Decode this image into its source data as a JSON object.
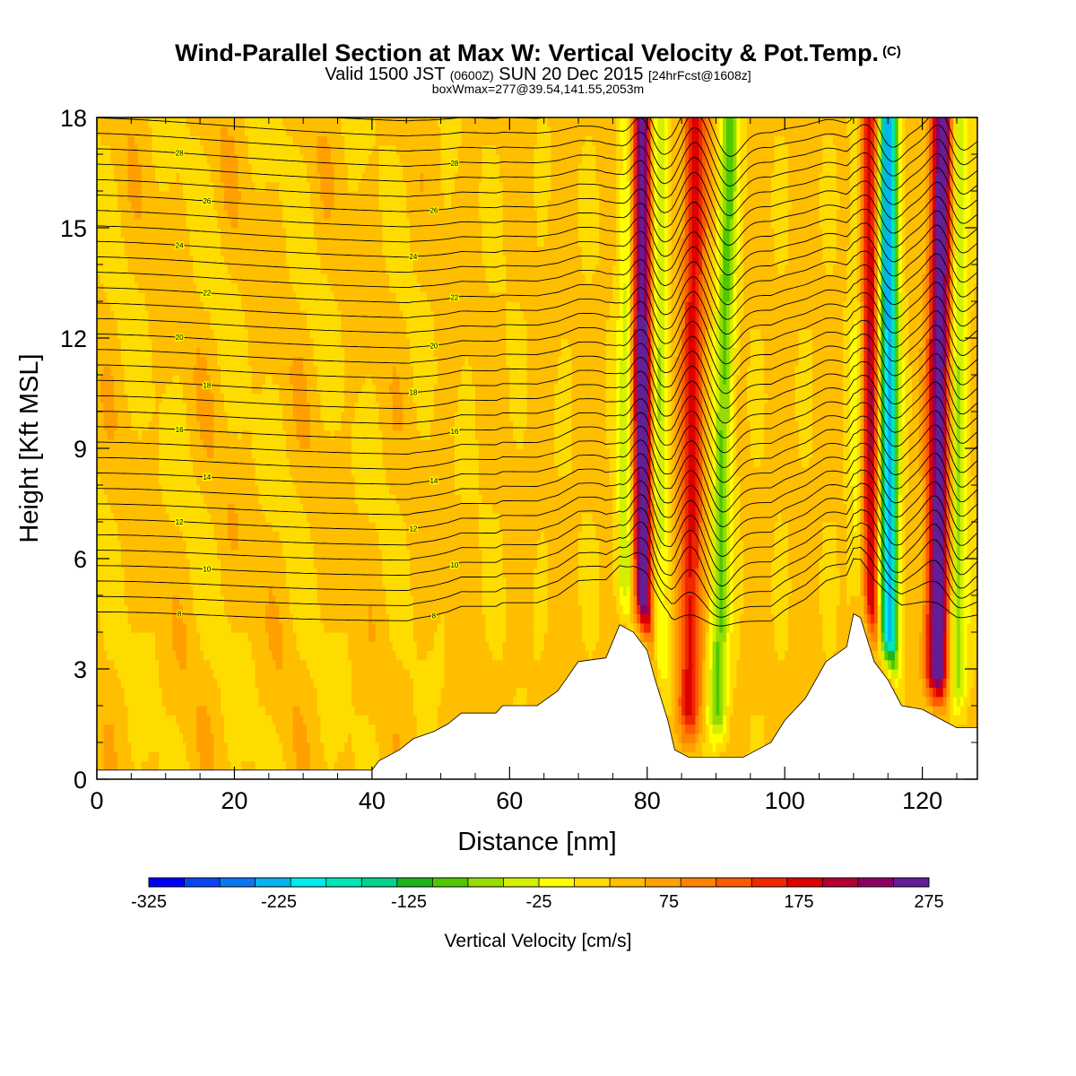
{
  "chart_data": {
    "type": "heatmap",
    "title": "Wind-Parallel Section at Max W: Vertical Velocity & Pot.Temp.",
    "title_mark": "(C)",
    "subtitle_parts": [
      "Valid 1500 JST ",
      "(0600Z)",
      " SUN 20 Dec 2015 ",
      "[24hrFcst@1608z]"
    ],
    "subtitle2": "boxWmax=277@39.54,141.55,2053m",
    "xlabel": "Distance [nm]",
    "ylabel": "Height [Kft MSL]",
    "xlim": [
      0,
      128
    ],
    "ylim": [
      0,
      18
    ],
    "x_ticks": [
      0,
      20,
      40,
      60,
      80,
      100,
      120
    ],
    "y_ticks": [
      0,
      3,
      6,
      9,
      12,
      15,
      18
    ],
    "colorbar": {
      "label": "Vertical Velocity [cm/s]",
      "min": -325,
      "max": 275,
      "step": 25,
      "tick_labels": [
        "-325",
        "-225",
        "-125",
        "-25",
        "75",
        "175",
        "275"
      ],
      "tick_values": [
        -325,
        -225,
        -125,
        -25,
        75,
        175,
        275
      ],
      "colors": [
        "#0000ff",
        "#0a46f0",
        "#0a78f0",
        "#00b4f0",
        "#00ebeb",
        "#00e6b4",
        "#00d28c",
        "#1eb41e",
        "#50c800",
        "#96dc00",
        "#d2f000",
        "#ffff00",
        "#ffdc00",
        "#ffbe00",
        "#ffa000",
        "#ff8200",
        "#ff5a00",
        "#f02800",
        "#dc0000",
        "#b40032",
        "#8c0064",
        "#641e96"
      ]
    },
    "terrain_kft": [
      [
        0,
        0.25
      ],
      [
        40,
        0.25
      ],
      [
        41,
        0.5
      ],
      [
        44,
        0.8
      ],
      [
        46,
        1.1
      ],
      [
        49,
        1.3
      ],
      [
        51,
        1.5
      ],
      [
        53,
        1.8
      ],
      [
        58,
        1.8
      ],
      [
        59,
        2.0
      ],
      [
        64,
        2.0
      ],
      [
        67,
        2.4
      ],
      [
        70,
        3.2
      ],
      [
        74,
        3.3
      ],
      [
        76,
        4.2
      ],
      [
        78,
        4.0
      ],
      [
        80,
        3.5
      ],
      [
        81,
        2.8
      ],
      [
        83,
        1.6
      ],
      [
        84,
        0.8
      ],
      [
        86,
        0.6
      ],
      [
        94,
        0.6
      ],
      [
        96,
        0.8
      ],
      [
        98,
        1.0
      ],
      [
        100,
        1.6
      ],
      [
        103,
        2.2
      ],
      [
        106,
        3.2
      ],
      [
        109,
        3.6
      ],
      [
        110,
        4.5
      ],
      [
        111,
        4.4
      ],
      [
        113,
        3.2
      ],
      [
        115,
        2.7
      ],
      [
        117,
        2.0
      ],
      [
        120,
        1.9
      ],
      [
        123,
        1.6
      ],
      [
        125,
        1.4
      ],
      [
        128,
        1.4
      ]
    ],
    "updraft_bands": [
      {
        "x_base": 79.5,
        "x_top": 79,
        "peak": 250
      },
      {
        "x_base": 86,
        "x_top": 87,
        "peak": 130
      },
      {
        "x_base": 112.5,
        "x_top": 112,
        "peak": 200
      },
      {
        "x_base": 122,
        "x_top": 123,
        "peak": 230
      }
    ],
    "downdraft_bands": [
      {
        "x_base": 77,
        "x_top": 77.5,
        "peak": -110
      },
      {
        "x_base": 81.5,
        "x_top": 81.5,
        "peak": -100
      },
      {
        "x_base": 90,
        "x_top": 92,
        "peak": -110
      },
      {
        "x_base": 111,
        "x_top": 111,
        "peak": -110
      },
      {
        "x_base": 115,
        "x_top": 115,
        "peak": -260
      },
      {
        "x_base": 125,
        "x_top": 125,
        "peak": -100
      }
    ],
    "isentropes": {
      "count": 34,
      "base_kft": 4.3,
      "spacing_kft": 0.42,
      "labels": [
        "28",
        "26",
        "24",
        "22",
        "20",
        "18",
        "16",
        "14",
        "12",
        "10",
        "8",
        "6"
      ]
    }
  }
}
